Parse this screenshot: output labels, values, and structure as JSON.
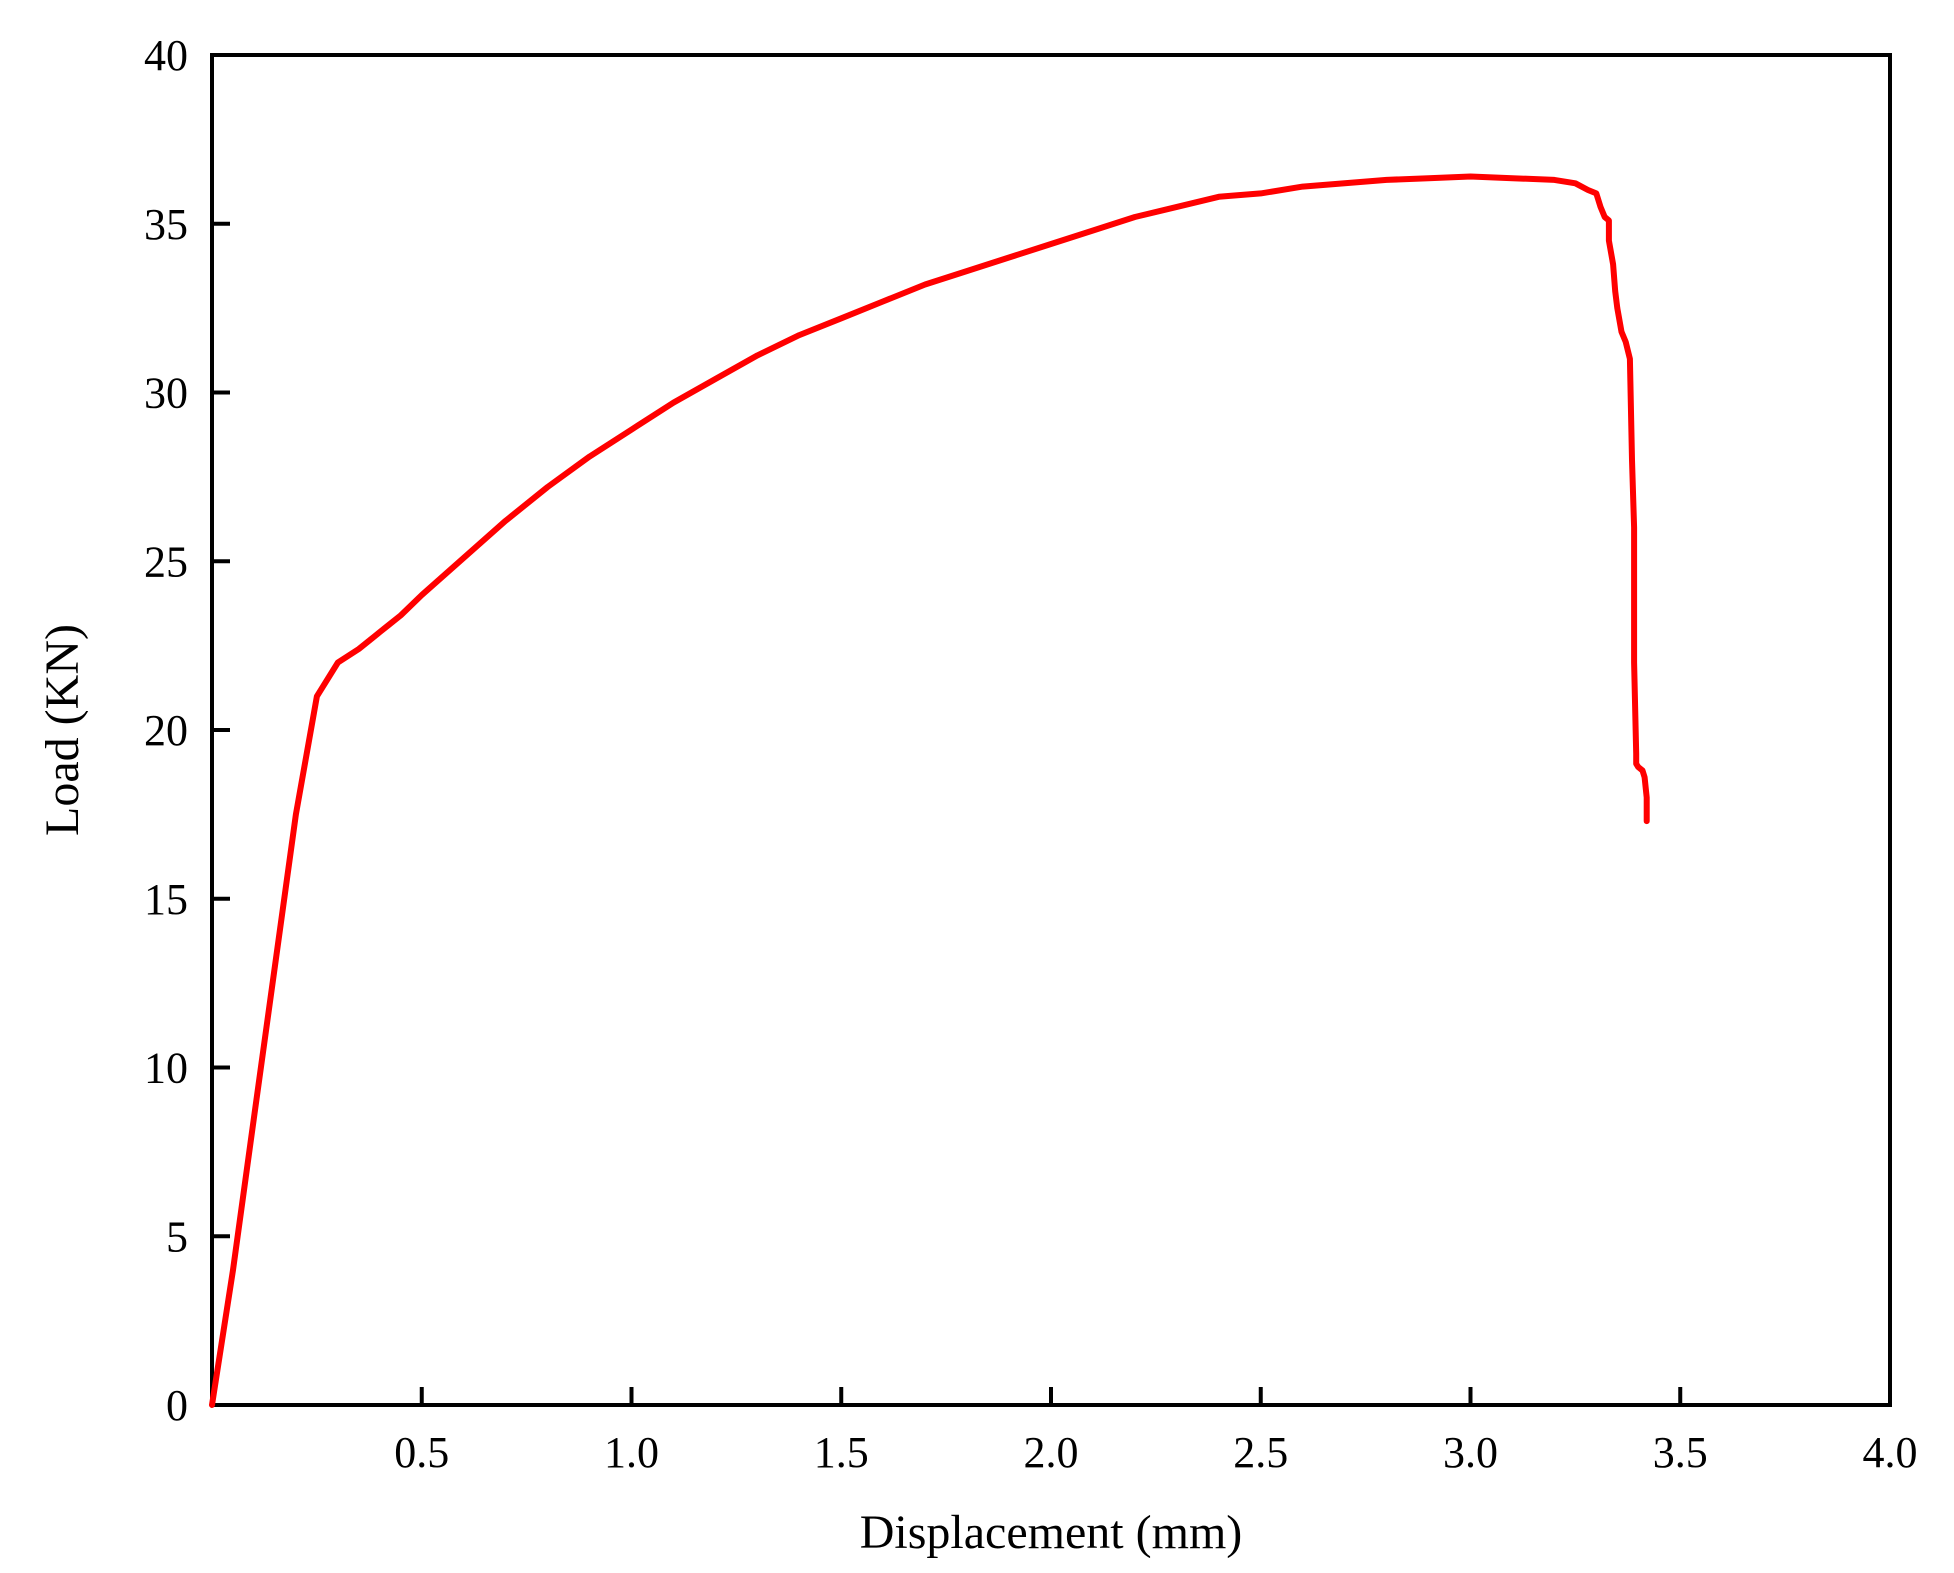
{
  "chart_data": {
    "type": "line",
    "title": "",
    "xlabel": "Displacement (mm)",
    "ylabel": "Load (KN)",
    "xlim": [
      0,
      4.0
    ],
    "ylim": [
      0,
      40
    ],
    "x_tick_labels": [
      "0.5",
      "1.0",
      "1.5",
      "2.0",
      "2.5",
      "3.0",
      "3.5",
      "4.0"
    ],
    "x_tick_values": [
      0.5,
      1.0,
      1.5,
      2.0,
      2.5,
      3.0,
      3.5,
      4.0
    ],
    "y_tick_labels": [
      "0",
      "5",
      "10",
      "15",
      "20",
      "25",
      "30",
      "35",
      "40"
    ],
    "y_tick_values": [
      0,
      5,
      10,
      15,
      20,
      25,
      30,
      35,
      40
    ],
    "grid": false,
    "legend": "none",
    "series": [
      {
        "color": "#ff0000",
        "x": [
          0,
          0.05,
          0.1,
          0.15,
          0.2,
          0.25,
          0.3,
          0.35,
          0.38,
          0.4,
          0.42,
          0.45,
          0.5,
          0.6,
          0.7,
          0.8,
          0.9,
          1.0,
          1.1,
          1.2,
          1.3,
          1.4,
          1.5,
          1.6,
          1.7,
          1.8,
          1.9,
          2.0,
          2.1,
          2.2,
          2.3,
          2.4,
          2.5,
          2.6,
          2.7,
          2.8,
          2.9,
          3.0,
          3.1,
          3.2,
          3.25,
          3.28,
          3.3,
          3.31,
          3.32,
          3.33,
          3.33,
          3.34,
          3.345,
          3.35,
          3.36,
          3.37,
          3.38,
          3.385,
          3.39,
          3.39,
          3.395,
          3.395,
          3.4,
          3.41,
          3.415,
          3.42,
          3.42
        ],
        "y": [
          0,
          4,
          8.5,
          13,
          17.5,
          21,
          22,
          22.4,
          22.7,
          22.9,
          23.1,
          23.4,
          24.0,
          25.1,
          26.2,
          27.2,
          28.1,
          28.9,
          29.7,
          30.4,
          31.1,
          31.7,
          32.2,
          32.7,
          33.2,
          33.6,
          34.0,
          34.4,
          34.8,
          35.2,
          35.5,
          35.8,
          35.9,
          36.1,
          36.2,
          36.3,
          36.35,
          36.4,
          36.35,
          36.3,
          36.2,
          36.0,
          35.9,
          35.5,
          35.2,
          35.1,
          34.5,
          33.8,
          33.0,
          32.5,
          31.8,
          31.5,
          31.0,
          28.0,
          26.0,
          22.0,
          19.3,
          19.0,
          18.9,
          18.8,
          18.6,
          18.0,
          17.3
        ]
      }
    ]
  }
}
